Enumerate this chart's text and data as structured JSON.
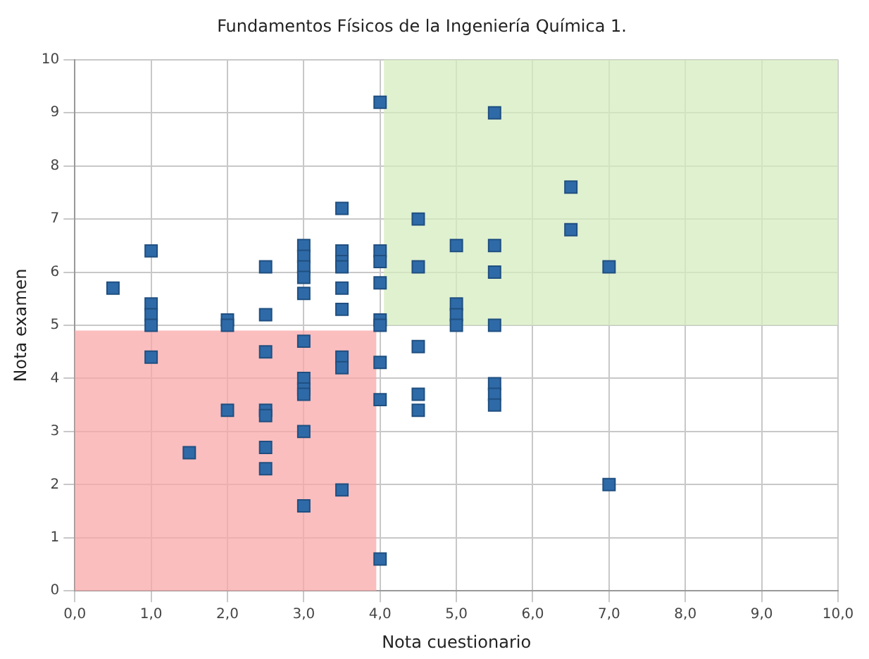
{
  "chart_data": {
    "type": "scatter",
    "title": "Fundamentos Físicos de la Ingeniería Química 1.",
    "xlabel": "Nota cuestionario",
    "ylabel": "Nota examen",
    "series": [
      {
        "color": "#2f6aa8",
        "x": [
          0.5,
          1,
          1,
          1,
          1,
          1,
          1.5,
          2,
          2,
          2,
          2.5,
          2.5,
          2.5,
          2.5,
          2.5,
          2.5,
          2.5,
          3,
          3,
          3,
          3,
          3,
          3,
          3,
          3,
          3,
          3,
          3,
          3.5,
          3.5,
          3.5,
          3.5,
          3.5,
          3.5,
          3.5,
          3.5,
          3.5,
          4,
          4,
          4,
          4,
          4,
          4,
          4,
          4,
          4,
          4.5,
          4.5,
          4.5,
          4.5,
          4.5,
          5,
          5,
          5,
          5,
          5.5,
          5.5,
          5.5,
          5.5,
          5.5,
          5.5,
          5.5,
          6.5,
          6.5,
          7,
          7
        ],
        "values": [
          5.7,
          6.4,
          5.4,
          5.2,
          5.0,
          4.4,
          2.6,
          5.1,
          5.0,
          3.4,
          6.1,
          5.2,
          4.5,
          3.4,
          3.3,
          2.7,
          2.3,
          6.5,
          6.3,
          6.1,
          5.9,
          5.6,
          4.7,
          4.0,
          3.8,
          3.7,
          3.0,
          1.6,
          7.2,
          6.4,
          6.2,
          6.1,
          5.7,
          5.3,
          4.4,
          4.2,
          1.9,
          9.2,
          6.4,
          6.2,
          5.8,
          5.1,
          5.0,
          4.3,
          3.6,
          0.6,
          7.0,
          6.1,
          4.6,
          3.7,
          3.4,
          6.5,
          5.4,
          5.2,
          5.0,
          9.0,
          6.5,
          6.0,
          5.0,
          3.9,
          3.7,
          3.5,
          7.6,
          6.8,
          6.1,
          2.0
        ]
      }
    ],
    "marker": "square",
    "grid": true,
    "legend": false,
    "xlim": [
      0,
      10
    ],
    "xticks": [
      {
        "value": 0,
        "label": "0,0"
      },
      {
        "value": 1,
        "label": "1,0"
      },
      {
        "value": 2,
        "label": "2,0"
      },
      {
        "value": 3,
        "label": "3,0"
      },
      {
        "value": 4,
        "label": "4,0"
      },
      {
        "value": 5,
        "label": "5,0"
      },
      {
        "value": 6,
        "label": "6,0"
      },
      {
        "value": 7,
        "label": "7,0"
      },
      {
        "value": 8,
        "label": "8,0"
      },
      {
        "value": 9,
        "label": "9,0"
      },
      {
        "value": 10,
        "label": "10,0"
      }
    ],
    "ylim": [
      0,
      10
    ],
    "yticks": [
      0,
      1,
      2,
      3,
      4,
      5,
      6,
      7,
      8,
      9,
      10
    ],
    "bands": [
      {
        "axis": "x",
        "from": 0,
        "to": 3.95,
        "color": "#f9a8a8"
      },
      {
        "axis": "x",
        "from": 4.05,
        "to": 10,
        "color": "#d6ecc0"
      }
    ]
  }
}
